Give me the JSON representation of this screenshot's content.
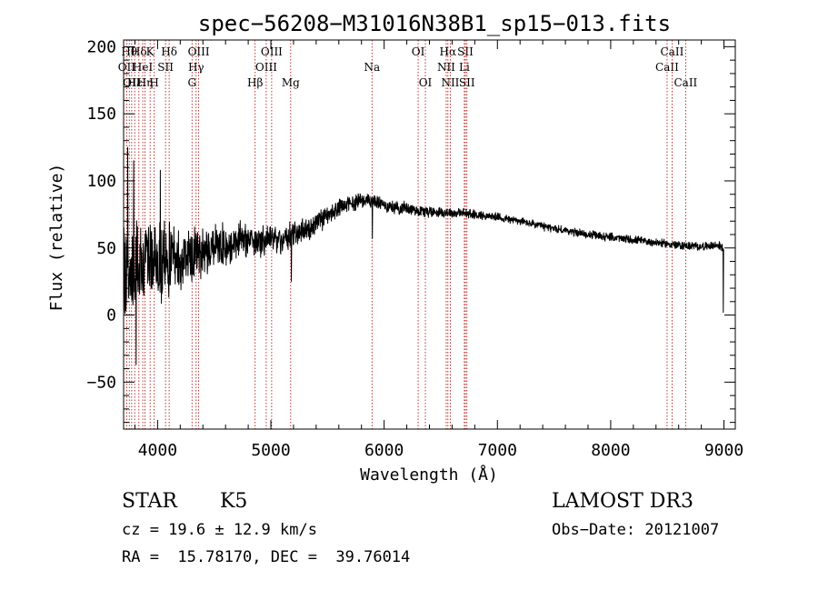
{
  "chart_data": {
    "type": "line",
    "title": "spec−56208−M31016N38B1_sp15−013.fits",
    "xlabel": "Wavelength (Å)",
    "ylabel": "Flux (relative)",
    "xlim": [
      3700,
      9100
    ],
    "ylim": [
      -85,
      205
    ],
    "xticks": [
      4000,
      5000,
      6000,
      7000,
      8000,
      9000
    ],
    "xtick_labels": [
      "4000",
      "5000",
      "6000",
      "7000",
      "8000",
      "9000"
    ],
    "yticks": [
      -50,
      0,
      50,
      100,
      150,
      200
    ],
    "ytick_labels": [
      "−50",
      "0",
      "50",
      "100",
      "150",
      "200"
    ],
    "grid": false,
    "series": [
      {
        "name": "flux",
        "continuum_knots": {
          "x": [
            3700,
            3800,
            3900,
            4000,
            4100,
            4200,
            4300,
            4400,
            4500,
            4600,
            4700,
            4800,
            4900,
            5000,
            5100,
            5200,
            5300,
            5400,
            5500,
            5600,
            5700,
            5800,
            5900,
            6000,
            6100,
            6200,
            6300,
            6400,
            6500,
            6600,
            6700,
            6800,
            6900,
            7000,
            7200,
            7400,
            7600,
            7800,
            8000,
            8200,
            8400,
            8600,
            8800,
            8950,
            9000
          ],
          "y": [
            28,
            35,
            40,
            38,
            42,
            40,
            45,
            48,
            52,
            52,
            55,
            57,
            54,
            57,
            55,
            60,
            63,
            68,
            73,
            80,
            83,
            86,
            85,
            82,
            80,
            80,
            78,
            77,
            77,
            76,
            76,
            75,
            74,
            73,
            70,
            66,
            63,
            60,
            58,
            56,
            54,
            52,
            51,
            52,
            50
          ]
        },
        "noise_scale_by_region": {
          "x": [
            3700,
            4000,
            4500,
            5000,
            5500,
            6000,
            7000,
            9000
          ],
          "amplitude": [
            32,
            24,
            13,
            9,
            6,
            4,
            2.5,
            2.5
          ]
        },
        "features": [
          {
            "x": 3735,
            "y": 125
          },
          {
            "x": 3790,
            "y": 115
          },
          {
            "x": 3810,
            "y": -37
          },
          {
            "x": 4025,
            "y": 108
          },
          {
            "x": 5180,
            "y": 25
          },
          {
            "x": 5895,
            "y": 57
          },
          {
            "x": 8995,
            "y": 2
          }
        ]
      }
    ],
    "line_markers": [
      {
        "x": 3727,
        "label": "OII",
        "row": 2
      },
      {
        "x": 3750,
        "label": "Hθ",
        "row": 1
      },
      {
        "x": 3771,
        "label": "OII",
        "row": 3
      },
      {
        "x": 3798,
        "label": "Hε",
        "row": 3
      },
      {
        "x": 3835,
        "label": "Hδ",
        "row": 1
      },
      {
        "x": 3869,
        "label": "HeI",
        "row": 2
      },
      {
        "x": 3889,
        "label": "Hη",
        "row": 3
      },
      {
        "x": 3934,
        "label": "K",
        "row": 1
      },
      {
        "x": 3970,
        "label": "H",
        "row": 3
      },
      {
        "x": 4070,
        "label": "SII",
        "row": 2
      },
      {
        "x": 4102,
        "label": "Hδ",
        "row": 1
      },
      {
        "x": 4304,
        "label": "G",
        "row": 3
      },
      {
        "x": 4340,
        "label": "Hγ",
        "row": 2
      },
      {
        "x": 4363,
        "label": "OIII",
        "row": 1
      },
      {
        "x": 4861,
        "label": "Hβ",
        "row": 3
      },
      {
        "x": 4959,
        "label": "OIII",
        "row": 2
      },
      {
        "x": 5007,
        "label": "OIII",
        "row": 1
      },
      {
        "x": 5175,
        "label": "Mg",
        "row": 3
      },
      {
        "x": 5893,
        "label": "Na",
        "row": 2
      },
      {
        "x": 6300,
        "label": "OI",
        "row": 1
      },
      {
        "x": 6364,
        "label": "OI",
        "row": 3
      },
      {
        "x": 6548,
        "label": "NII",
        "row": 2
      },
      {
        "x": 6563,
        "label": "Hα",
        "row": 1
      },
      {
        "x": 6584,
        "label": "NII",
        "row": 3
      },
      {
        "x": 6708,
        "label": "Li",
        "row": 2
      },
      {
        "x": 6717,
        "label": "SII",
        "row": 1
      },
      {
        "x": 6731,
        "label": "SII",
        "row": 3
      },
      {
        "x": 8498,
        "label": "CaII",
        "row": 2
      },
      {
        "x": 8542,
        "label": "CaII",
        "row": 1
      },
      {
        "x": 8662,
        "label": "CaII",
        "row": 3
      }
    ],
    "colors": {
      "spectrum": "#000000",
      "markers": "#b00000",
      "axes": "#000000"
    }
  },
  "info": {
    "class": "STAR",
    "subclass": "K5",
    "survey": "LAMOST DR3",
    "cz": "cz = 19.6 ± 12.9 km/s",
    "obs_date": "Obs−Date: 20121007",
    "coords": "RA =  15.78170, DEC =  39.76014"
  }
}
